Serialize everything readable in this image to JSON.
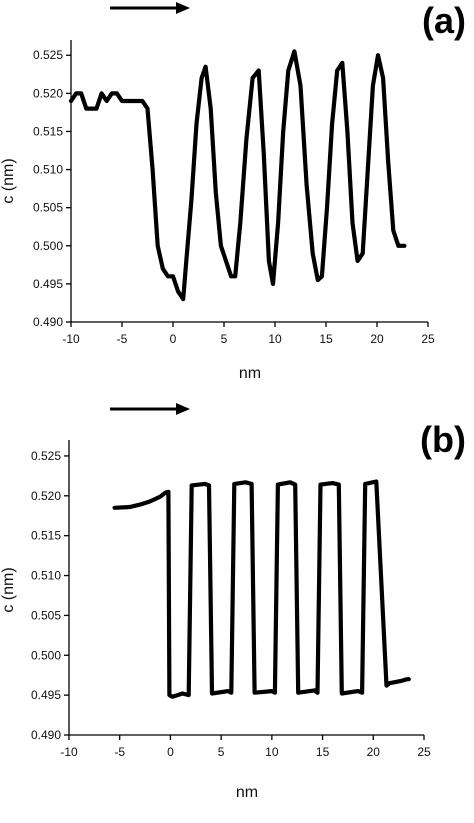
{
  "chart_data": [
    {
      "type": "line",
      "panel_label": "(a)",
      "xlabel": "nm",
      "ylabel": "c (nm)",
      "xlim": [
        -10,
        25
      ],
      "ylim": [
        0.49,
        0.527
      ],
      "xticks": [
        -10,
        -5,
        0,
        5,
        10,
        15,
        20,
        25
      ],
      "xtick_labels": [
        "-10",
        "-5",
        "0",
        "5",
        "10",
        "15",
        "20",
        "25"
      ],
      "yticks": [
        0.49,
        0.495,
        0.5,
        0.505,
        0.51,
        0.515,
        0.52,
        0.525
      ],
      "ytick_labels": [
        "0.490",
        "0.495",
        "0.500",
        "0.505",
        "0.510",
        "0.515",
        "0.520",
        "0.525"
      ],
      "grid": false,
      "direction_arrow": "right",
      "series": [
        {
          "x": [
            -10,
            -9.5,
            -9,
            -8.5,
            -8,
            -7.5,
            -7,
            -6.5,
            -6,
            -5.5,
            -5,
            -4.5,
            -4,
            -3.5,
            -3,
            -2.5,
            -2,
            -1.5,
            -1,
            -0.5,
            0,
            0.5,
            1,
            1.3,
            1.8,
            2.3,
            2.8,
            3.2,
            3.7,
            4.2,
            4.7,
            5.2,
            5.7,
            6.1,
            6.6,
            7.2,
            7.8,
            8.4,
            8.9,
            9.4,
            9.8,
            10.3,
            10.8,
            11.3,
            11.9,
            12.5,
            13.1,
            13.7,
            14.2,
            14.6,
            15.1,
            15.6,
            16.1,
            16.6,
            17.1,
            17.6,
            18.1,
            18.6,
            19.1,
            19.6,
            20.1,
            20.6,
            21.1,
            21.6,
            22.1,
            22.7
          ],
          "y": [
            0.519,
            0.52,
            0.52,
            0.518,
            0.518,
            0.518,
            0.52,
            0.519,
            0.52,
            0.52,
            0.519,
            0.519,
            0.519,
            0.519,
            0.519,
            0.518,
            0.51,
            0.5,
            0.497,
            0.496,
            0.496,
            0.494,
            0.493,
            0.498,
            0.506,
            0.516,
            0.522,
            0.5235,
            0.518,
            0.507,
            0.5,
            0.498,
            0.496,
            0.496,
            0.503,
            0.514,
            0.522,
            0.523,
            0.512,
            0.498,
            0.495,
            0.503,
            0.515,
            0.523,
            0.5255,
            0.521,
            0.508,
            0.499,
            0.4955,
            0.496,
            0.505,
            0.516,
            0.523,
            0.524,
            0.515,
            0.503,
            0.498,
            0.499,
            0.51,
            0.521,
            0.525,
            0.522,
            0.511,
            0.502,
            0.5,
            0.5
          ]
        }
      ]
    },
    {
      "type": "line",
      "panel_label": "(b)",
      "xlabel": "nm",
      "ylabel": "c (nm)",
      "xlim": [
        -10,
        25
      ],
      "ylim": [
        0.49,
        0.527
      ],
      "xticks": [
        -10,
        -5,
        0,
        5,
        10,
        15,
        20,
        25
      ],
      "xtick_labels": [
        "-10",
        "-5",
        "0",
        "5",
        "10",
        "15",
        "20",
        "25"
      ],
      "yticks": [
        0.49,
        0.495,
        0.5,
        0.505,
        0.51,
        0.515,
        0.52,
        0.525
      ],
      "ytick_labels": [
        "0.490",
        "0.495",
        "0.500",
        "0.505",
        "0.510",
        "0.515",
        "0.520",
        "0.525"
      ],
      "grid": false,
      "direction_arrow": "right",
      "series": [
        {
          "x": [
            -5.5,
            -4,
            -3,
            -2,
            -1,
            -0.5,
            -0.2,
            -0.1,
            0.2,
            1.2,
            1.8,
            2.1,
            3.4,
            3.8,
            4.1,
            5.7,
            6.0,
            6.3,
            7.4,
            8.0,
            8.3,
            10.0,
            10.3,
            10.6,
            11.8,
            12.3,
            12.6,
            14.2,
            14.5,
            14.8,
            16.0,
            16.6,
            16.9,
            18.5,
            18.9,
            19.2,
            20.3,
            21.3,
            21.6,
            22.8,
            23.3,
            23.5
          ],
          "y": [
            0.5185,
            0.5186,
            0.5189,
            0.5193,
            0.5199,
            0.5204,
            0.5205,
            0.495,
            0.4948,
            0.4952,
            0.495,
            0.5213,
            0.5215,
            0.5213,
            0.4952,
            0.4955,
            0.4953,
            0.5215,
            0.5217,
            0.5215,
            0.4953,
            0.4955,
            0.4953,
            0.5214,
            0.5217,
            0.5214,
            0.4953,
            0.4956,
            0.4953,
            0.5214,
            0.5216,
            0.5214,
            0.4952,
            0.4955,
            0.4953,
            0.5215,
            0.5218,
            0.4962,
            0.4965,
            0.4968,
            0.497,
            0.497
          ]
        }
      ]
    }
  ]
}
